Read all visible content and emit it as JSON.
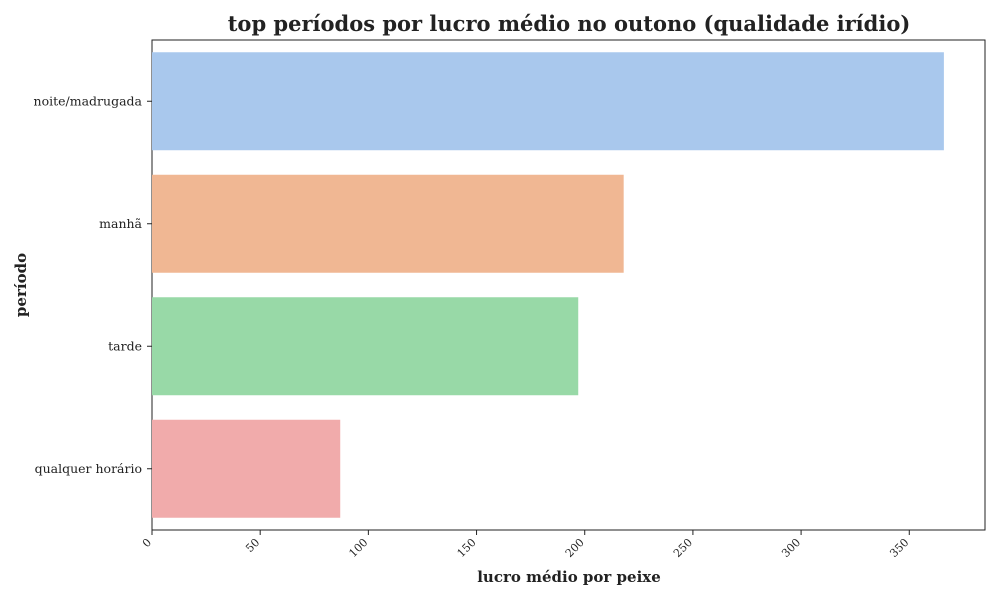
{
  "chart_data": {
    "type": "bar",
    "orientation": "horizontal",
    "title": "top períodos por lucro médio no outono (qualidade irídio)",
    "xlabel": "lucro médio por peixe",
    "ylabel": "período",
    "categories": [
      "noite/madrugada",
      "manhã",
      "tarde",
      "qualquer horário"
    ],
    "values": [
      366,
      218,
      197,
      87
    ],
    "colors": [
      "#a9c8ed",
      "#f0b793",
      "#98d9a7",
      "#f1abab"
    ],
    "xlim": [
      0,
      385
    ],
    "xticks": [
      0,
      50,
      100,
      150,
      200,
      250,
      300,
      350
    ],
    "grid": false
  }
}
